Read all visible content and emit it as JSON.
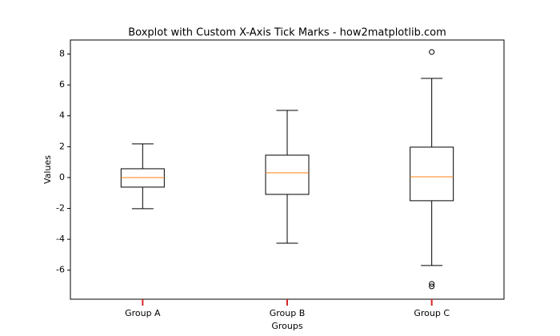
{
  "chart_data": {
    "type": "box",
    "title": "Boxplot with Custom X-Axis Tick Marks - how2matplotlib.com",
    "x_label": "Groups",
    "y_label": "Values",
    "categories": [
      "Group A",
      "Group B",
      "Group C"
    ],
    "boxes": [
      {
        "whisker_low": -2.02,
        "q1": -0.62,
        "median": 0.0,
        "q3": 0.57,
        "whisker_high": 2.18,
        "outliers": []
      },
      {
        "whisker_low": -4.25,
        "q1": -1.09,
        "median": 0.31,
        "q3": 1.45,
        "whisker_high": 4.35,
        "outliers": []
      },
      {
        "whisker_low": -5.7,
        "q1": -1.5,
        "median": 0.05,
        "q3": 1.97,
        "whisker_high": 6.42,
        "outliers": [
          8.13,
          -6.89,
          -7.05
        ]
      }
    ],
    "box_color": "#000000",
    "median_color": "#ff7f0e",
    "xtick_color": "#d62728",
    "ylim": [
      -7.88,
      8.91
    ],
    "yticks": [
      -6,
      -4,
      -2,
      0,
      2,
      4,
      6,
      8
    ]
  }
}
